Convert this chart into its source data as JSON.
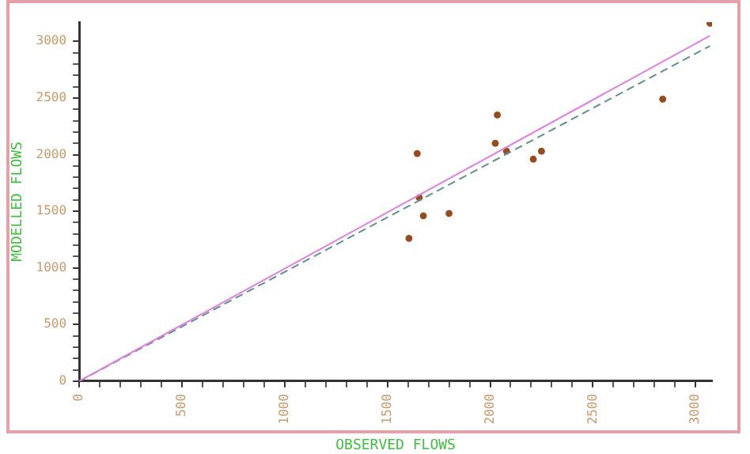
{
  "chart_data": {
    "type": "scatter",
    "xlabel": "OBSERVED FLOWS",
    "ylabel": "MODELLED FLOWS",
    "marker": "circle",
    "xlim": [
      0,
      3080
    ],
    "ylim": [
      0,
      3170
    ],
    "xticks": [
      0,
      {
        "value": 100,
        "label": null
      },
      {
        "value": 200,
        "label": null
      },
      {
        "value": 300,
        "label": null
      },
      {
        "value": 400,
        "label": null
      },
      500,
      {
        "value": 600,
        "label": null
      },
      {
        "value": 700,
        "label": null
      },
      {
        "value": 800,
        "label": null
      },
      {
        "value": 900,
        "label": null
      },
      1000,
      {
        "value": 1100,
        "label": null
      },
      {
        "value": 1200,
        "label": null
      },
      {
        "value": 1300,
        "label": null
      },
      {
        "value": 1400,
        "label": null
      },
      1500,
      {
        "value": 1600,
        "label": null
      },
      {
        "value": 1700,
        "label": null
      },
      {
        "value": 1800,
        "label": null
      },
      {
        "value": 1900,
        "label": null
      },
      2000,
      {
        "value": 2100,
        "label": null
      },
      {
        "value": 2200,
        "label": null
      },
      {
        "value": 2300,
        "label": null
      },
      {
        "value": 2400,
        "label": null
      },
      2500,
      {
        "value": 2600,
        "label": null
      },
      {
        "value": 2700,
        "label": null
      },
      {
        "value": 2800,
        "label": null
      },
      {
        "value": 2900,
        "label": null
      },
      3000
    ],
    "yticks": [
      0,
      {
        "value": 100,
        "label": null
      },
      {
        "value": 200,
        "label": null
      },
      {
        "value": 300,
        "label": null
      },
      {
        "value": 400,
        "label": null
      },
      500,
      {
        "value": 600,
        "label": null
      },
      {
        "value": 700,
        "label": null
      },
      {
        "value": 800,
        "label": null
      },
      {
        "value": 900,
        "label": null
      },
      1000,
      {
        "value": 1100,
        "label": null
      },
      {
        "value": 1200,
        "label": null
      },
      {
        "value": 1300,
        "label": null
      },
      {
        "value": 1400,
        "label": null
      },
      1500,
      {
        "value": 1600,
        "label": null
      },
      {
        "value": 1700,
        "label": null
      },
      {
        "value": 1800,
        "label": null
      },
      {
        "value": 1900,
        "label": null
      },
      2000,
      {
        "value": 2100,
        "label": null
      },
      {
        "value": 2200,
        "label": null
      },
      {
        "value": 2300,
        "label": null
      },
      {
        "value": 2400,
        "label": null
      },
      2500,
      {
        "value": 2600,
        "label": null
      },
      {
        "value": 2700,
        "label": null
      },
      {
        "value": 2800,
        "label": null
      },
      {
        "value": 2900,
        "label": null
      },
      3000
    ],
    "series": [
      {
        "type": "line",
        "color": "#e080e0",
        "line_style": "solid",
        "marker": "none",
        "x": [
          0,
          3070
        ],
        "values": [
          0,
          3050
        ]
      },
      {
        "type": "line",
        "color": "#609090",
        "line_style": "dashed",
        "marker": "none",
        "x": [
          0,
          3070
        ],
        "values": [
          0,
          2960
        ]
      },
      {
        "type": "scatter",
        "color": "#9a4a1a",
        "x": [
          3070,
          2840,
          2035,
          1645,
          2025,
          2080,
          2210,
          2250,
          1655,
          1675,
          1800,
          1605
        ],
        "values": [
          3160,
          2490,
          2350,
          2010,
          2100,
          2030,
          1960,
          2030,
          1620,
          1460,
          1480,
          1260
        ]
      }
    ]
  }
}
